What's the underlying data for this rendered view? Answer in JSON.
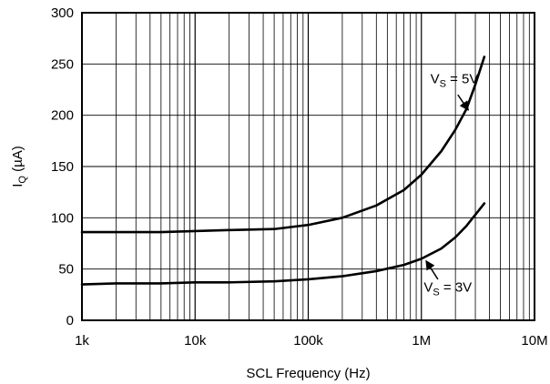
{
  "chart_data": {
    "type": "line",
    "xscale": "log",
    "xlim": [
      1000,
      10000000
    ],
    "ylim": [
      0,
      300
    ],
    "grid": true,
    "xlabel": "SCL Frequency (Hz)",
    "ylabel_main": "I",
    "ylabel_sub": "Q",
    "ylabel_unit": " (µA)",
    "xticks": [
      {
        "value": 1000,
        "label": "1k"
      },
      {
        "value": 10000,
        "label": "10k"
      },
      {
        "value": 100000,
        "label": "100k"
      },
      {
        "value": 1000000,
        "label": "1M"
      },
      {
        "value": 10000000,
        "label": "10M"
      }
    ],
    "yticks": [
      {
        "value": 0,
        "label": "0"
      },
      {
        "value": 50,
        "label": "50"
      },
      {
        "value": 100,
        "label": "100"
      },
      {
        "value": 150,
        "label": "150"
      },
      {
        "value": 200,
        "label": "200"
      },
      {
        "value": 250,
        "label": "250"
      },
      {
        "value": 300,
        "label": "300"
      }
    ],
    "series": [
      {
        "key": "vs5",
        "label_main": "V",
        "label_sub": "S",
        "label_rest": " = 5V",
        "label_x": 1200000,
        "label_y": 231,
        "arrow_from": [
          2100000,
          220
        ],
        "arrow_to": [
          2600000,
          205
        ],
        "points": [
          [
            1000,
            86
          ],
          [
            2000,
            86
          ],
          [
            5000,
            86
          ],
          [
            10000,
            87
          ],
          [
            20000,
            88
          ],
          [
            50000,
            89
          ],
          [
            100000,
            93
          ],
          [
            200000,
            100
          ],
          [
            400000,
            112
          ],
          [
            700000,
            127
          ],
          [
            1000000,
            142
          ],
          [
            1500000,
            165
          ],
          [
            2000000,
            186
          ],
          [
            2500000,
            206
          ],
          [
            3000000,
            230
          ],
          [
            3600000,
            257
          ]
        ]
      },
      {
        "key": "vs3",
        "label_main": "V",
        "label_sub": "S",
        "label_rest": " = 3V",
        "label_x": 1050000,
        "label_y": 28,
        "arrow_from": [
          1400000,
          40
        ],
        "arrow_to": [
          1100000,
          58
        ],
        "points": [
          [
            1000,
            35
          ],
          [
            2000,
            36
          ],
          [
            5000,
            36
          ],
          [
            10000,
            37
          ],
          [
            20000,
            37
          ],
          [
            50000,
            38
          ],
          [
            100000,
            40
          ],
          [
            200000,
            43
          ],
          [
            400000,
            48
          ],
          [
            700000,
            54
          ],
          [
            1000000,
            60
          ],
          [
            1500000,
            70
          ],
          [
            2000000,
            81
          ],
          [
            2500000,
            92
          ],
          [
            3000000,
            103
          ],
          [
            3600000,
            114
          ]
        ]
      }
    ]
  }
}
